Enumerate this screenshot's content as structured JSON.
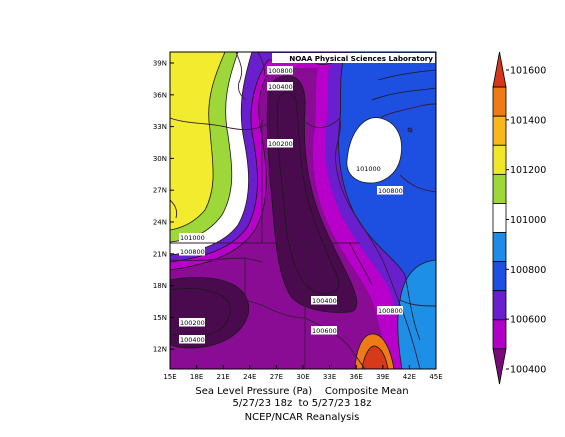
{
  "credit": "NOAA Physical Sciences Laboratory",
  "caption": {
    "line1": "Sea Level Pressure (Pa)    Composite Mean",
    "line2": "5/27/23 18z  to 5/27/23 18z",
    "line3": "NCEP/NCAR Reanalysis"
  },
  "x_ticks": [
    "15E",
    "18E",
    "21E",
    "24E",
    "27E",
    "30E",
    "33E",
    "36E",
    "39E",
    "42E",
    "45E"
  ],
  "y_ticks": [
    "39N",
    "36N",
    "33N",
    "30N",
    "27N",
    "24N",
    "21N",
    "18N",
    "15N",
    "12N"
  ],
  "colorbar": {
    "colors": [
      "#7a0a7a",
      "#b000c8",
      "#6a1fcf",
      "#1d4fe0",
      "#1c8ce8",
      "#ffffff",
      "#9ed73a",
      "#f0e62a",
      "#f8b81c",
      "#ee7a18",
      "#d6361a"
    ],
    "tick_labels": [
      "101600",
      "101400",
      "101200",
      "101000",
      "100800",
      "100600",
      "100400"
    ]
  },
  "contour_labels": [
    "100800",
    "100400",
    "100200",
    "101000",
    "100800",
    "101000",
    "100800",
    "100400",
    "100200",
    "100800",
    "100400",
    "100600",
    "100800"
  ],
  "palette": {
    "yellow": "#f3ec2e",
    "green": "#9ed73a",
    "white": "#ffffff",
    "lightblue": "#1e8fe6",
    "blue": "#1d4fe0",
    "violet": "#6a1fcf",
    "magenta": "#b700c9",
    "purple": "#8a0c94",
    "darkpurple": "#4a0a4e",
    "orange": "#ee7a18",
    "red": "#d63a1a"
  }
}
